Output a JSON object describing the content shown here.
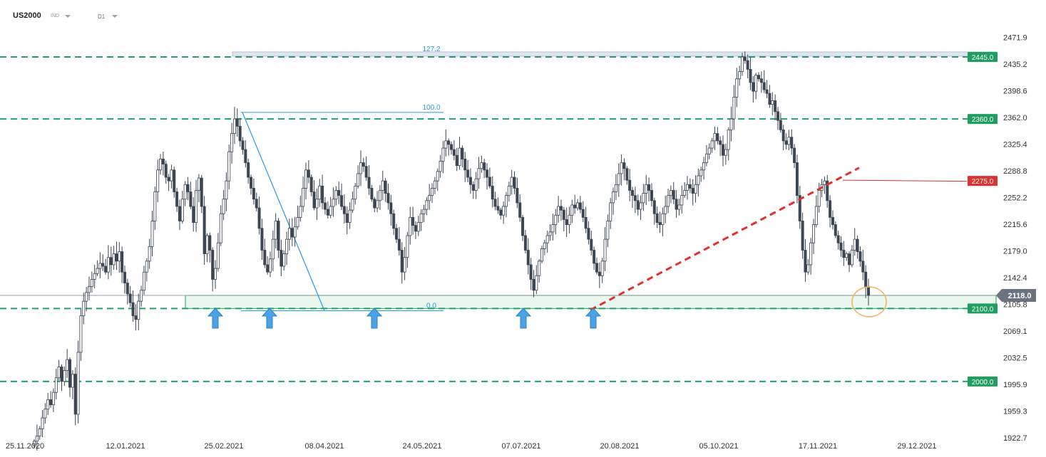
{
  "header": {
    "symbol": "US2000",
    "market": "IND",
    "timeframe": "D1"
  },
  "colors": {
    "candle": "#3d4652",
    "level_line": "#22a06b",
    "level_tag": "#1f9e5e",
    "resistance_tag": "#e03131",
    "trendline": "#e03131",
    "fib": "#2b97e0",
    "zone_fill": "#e9f7ef",
    "zone_border": "#3cb577",
    "fib_zone": "#dfe4ef",
    "current_tag": "#6b7380",
    "arrow": "#4aa3e8",
    "circle": "#f2b15a"
  },
  "chart_data": {
    "type": "candlestick",
    "title": "US2000",
    "timeframe": "D1",
    "ylim": [
      1912,
      2487
    ],
    "y_ticks": [
      "2471.9",
      "2435.2",
      "2398.6",
      "2362.0",
      "2325.4",
      "2288.8",
      "2252.2",
      "2215.6",
      "2179.0",
      "2142.4",
      "2105.8",
      "2069.1",
      "2032.5",
      "1995.9",
      "1959.3",
      "1922.7"
    ],
    "x_ticks": [
      "25.11.2020",
      "12.01.2021",
      "25.02.2021",
      "08.04.2021",
      "24.05.2021",
      "07.07.2021",
      "20.08.2021",
      "05.10.2021",
      "17.11.2021",
      "29.12.2021"
    ],
    "levels": [
      {
        "label": "2445.0",
        "value": 2445.0,
        "kind": "support-resistance"
      },
      {
        "label": "2360.0",
        "value": 2360.0,
        "kind": "support-resistance"
      },
      {
        "label": "2275.0",
        "value": 2275.0,
        "kind": "resistance"
      },
      {
        "label": "2100.0",
        "value": 2100.0,
        "kind": "support-resistance"
      },
      {
        "label": "2000.0",
        "value": 2000.0,
        "kind": "support-resistance"
      }
    ],
    "current_price": {
      "label": "2118.0",
      "value": 2118.0
    },
    "fibonacci": [
      {
        "label": "127.2",
        "value": 2449
      },
      {
        "label": "100.0",
        "value": 2369
      },
      {
        "label": "0.0",
        "value": 2097
      }
    ],
    "support_zone": [
      2100.0,
      2118.0
    ],
    "closes": [
      1918,
      1925,
      1935,
      1950,
      1962,
      1975,
      1968,
      1985,
      2005,
      2020,
      2000,
      2015,
      2030,
      1992,
      2010,
      1955,
      2040,
      2090,
      2110,
      2122,
      2130,
      2140,
      2148,
      2155,
      2162,
      2158,
      2150,
      2170,
      2160,
      2175,
      2165,
      2178,
      2150,
      2135,
      2120,
      2108,
      2090,
      2085,
      2110,
      2125,
      2150,
      2165,
      2185,
      2220,
      2260,
      2290,
      2305,
      2298,
      2280,
      2275,
      2290,
      2260,
      2240,
      2220,
      2250,
      2270,
      2260,
      2240,
      2218,
      2262,
      2279,
      2240,
      2175,
      2200,
      2180,
      2140,
      2155,
      2190,
      2230,
      2250,
      2275,
      2315,
      2340,
      2360,
      2350,
      2330,
      2318,
      2300,
      2280,
      2265,
      2250,
      2238,
      2210,
      2180,
      2160,
      2150,
      2168,
      2195,
      2220,
      2180,
      2158,
      2175,
      2195,
      2210,
      2198,
      2212,
      2225,
      2240,
      2265,
      2290,
      2280,
      2260,
      2238,
      2250,
      2268,
      2245,
      2236,
      2228,
      2240,
      2250,
      2262,
      2255,
      2240,
      2230,
      2218,
      2235,
      2250,
      2268,
      2285,
      2300,
      2295,
      2280,
      2265,
      2250,
      2238,
      2248,
      2262,
      2275,
      2258,
      2245,
      2230,
      2210,
      2195,
      2180,
      2150,
      2170,
      2200,
      2225,
      2214,
      2206,
      2218,
      2230,
      2236,
      2248,
      2255,
      2265,
      2275,
      2288,
      2302,
      2320,
      2330,
      2325,
      2318,
      2310,
      2296,
      2320,
      2305,
      2290,
      2280,
      2270,
      2262,
      2278,
      2292,
      2300,
      2290,
      2280,
      2268,
      2250,
      2240,
      2235,
      2228,
      2240,
      2255,
      2268,
      2280,
      2265,
      2245,
      2225,
      2200,
      2180,
      2160,
      2140,
      2125,
      2145,
      2165,
      2182,
      2190,
      2200,
      2205,
      2215,
      2228,
      2240,
      2235,
      2222,
      2215,
      2228,
      2242,
      2238,
      2245,
      2236,
      2225,
      2210,
      2195,
      2180,
      2162,
      2150,
      2145,
      2165,
      2195,
      2220,
      2245,
      2260,
      2270,
      2285,
      2300,
      2292,
      2276,
      2262,
      2255,
      2248,
      2236,
      2245,
      2258,
      2270,
      2262,
      2248,
      2230,
      2218,
      2215,
      2230,
      2240,
      2255,
      2262,
      2250,
      2236,
      2242,
      2255,
      2262,
      2270,
      2265,
      2258,
      2270,
      2282,
      2290,
      2300,
      2312,
      2320,
      2330,
      2340,
      2330,
      2325,
      2310,
      2318,
      2345,
      2360,
      2390,
      2415,
      2425,
      2445,
      2440,
      2428,
      2410,
      2398,
      2420,
      2415,
      2410,
      2400,
      2395,
      2380,
      2385,
      2370,
      2358,
      2345,
      2330,
      2325,
      2335,
      2320,
      2300,
      2255,
      2220,
      2180,
      2150,
      2160,
      2190,
      2215,
      2240,
      2262,
      2270,
      2275,
      2248,
      2225,
      2215,
      2200,
      2190,
      2180,
      2170,
      2175,
      2160,
      2180,
      2195,
      2178,
      2165,
      2150,
      2130,
      2118
    ]
  },
  "annotations": {
    "support_arrows_count": 5,
    "circle": "current price test of support zone"
  }
}
